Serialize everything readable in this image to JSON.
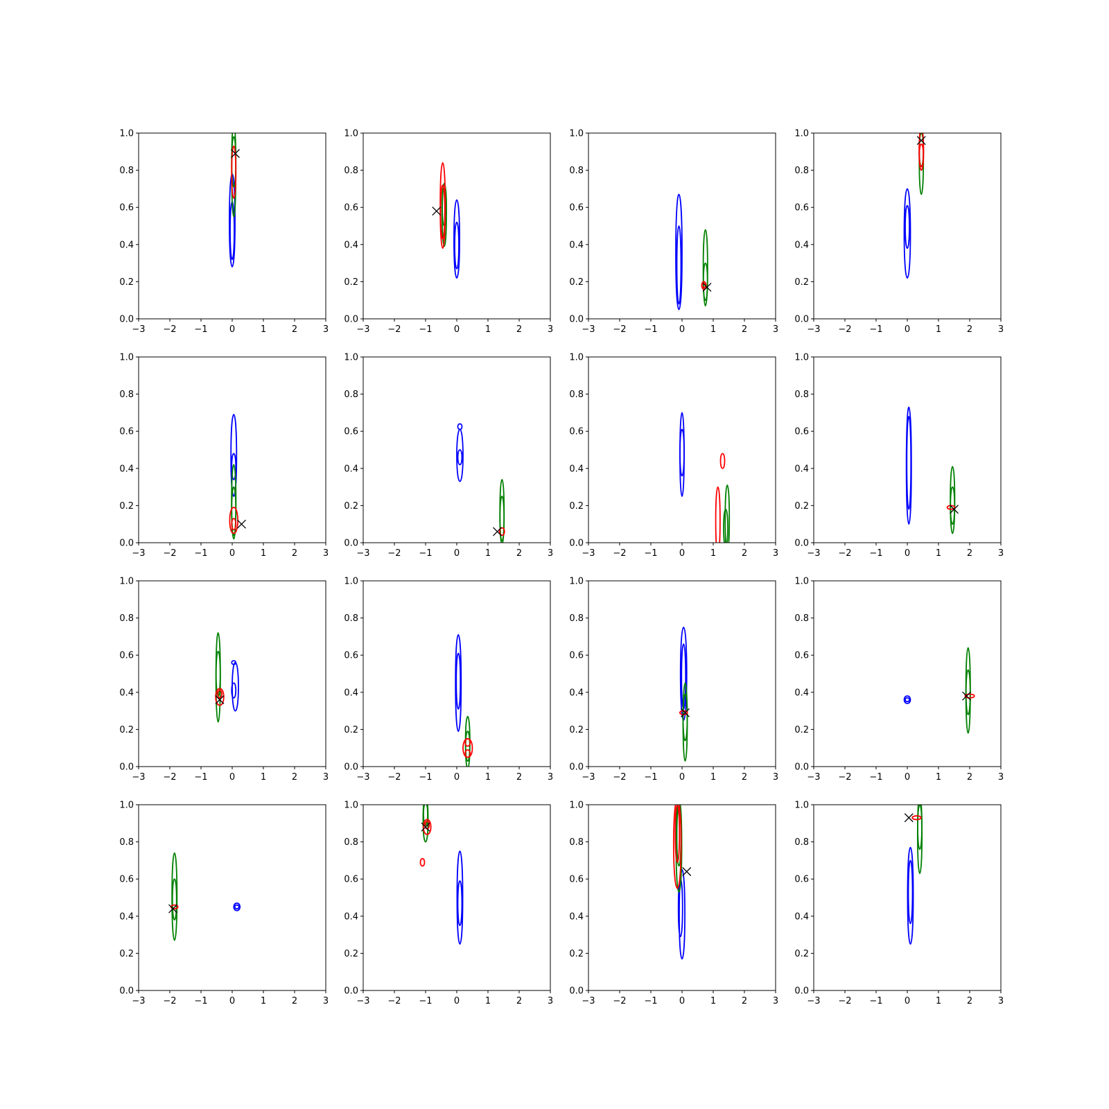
{
  "chart_data": {
    "type": "contour",
    "layout": {
      "rows": 4,
      "cols": 4
    },
    "x_ticks": [
      "−3",
      "−2",
      "−1",
      "0",
      "1",
      "2",
      "3"
    ],
    "y_ticks": [
      "0.0",
      "0.2",
      "0.4",
      "0.6",
      "0.8",
      "1.0"
    ],
    "xlim": [
      -3,
      3
    ],
    "ylim": [
      0,
      1
    ],
    "grid": false,
    "colors": {
      "blue": "#0000ff",
      "green": "#008000",
      "red": "#ff0000",
      "marker": "#000000"
    },
    "panels": [
      {
        "blue": [
          [
            0,
            0.53,
            0.25,
            0.25,
            0.09
          ],
          [
            0,
            0.47,
            0.15,
            0.16,
            0.05
          ]
        ],
        "green": [
          [
            0.05,
            0.79,
            0.24,
            0.27,
            0.05
          ],
          [
            0.05,
            0.83,
            0.12,
            0.15,
            0.03
          ]
        ],
        "red": [
          [
            0.05,
            0.89,
            0.24,
            0.04,
            0.005
          ]
        ],
        "marker": [
          0.1,
          0.89
        ]
      },
      {
        "blue": [
          [
            0,
            0.43,
            0.21,
            0.21,
            0.09
          ],
          [
            0,
            0.39,
            0.12,
            0.13,
            0.05
          ]
        ],
        "green": [
          [
            -0.4,
            0.56,
            0.17,
            0.17,
            0.06
          ],
          [
            -0.4,
            0.6,
            0.1,
            0.12,
            0.03
          ]
        ],
        "red": [
          [
            -0.45,
            0.61,
            0.23,
            0.23,
            0.08
          ],
          [
            -0.45,
            0.56,
            0.13,
            0.16,
            0.03
          ]
        ],
        "marker": [
          -0.65,
          0.58
        ]
      },
      {
        "blue": [
          [
            -0.1,
            0.36,
            0.31,
            0.31,
            0.1
          ],
          [
            -0.1,
            0.3,
            0.22,
            0.2,
            0.06
          ]
        ],
        "green": [
          [
            0.75,
            0.24,
            0.17,
            0.24,
            0.07
          ],
          [
            0.75,
            0.2,
            0.1,
            0.1,
            0.03
          ]
        ],
        "red": [
          [
            0.7,
            0.18,
            0.02,
            0.02,
            0.04
          ],
          [
            0.7,
            0.18,
            0.01,
            0.01,
            0.015
          ]
        ],
        "marker": [
          0.8,
          0.17
        ]
      },
      {
        "blue": [
          [
            0,
            0.45,
            0.23,
            0.25,
            0.1
          ],
          [
            0,
            0.5,
            0.12,
            0.11,
            0.05
          ]
        ],
        "green": [
          [
            0.45,
            0.85,
            0.18,
            0.2,
            0.06
          ],
          [
            0.45,
            0.9,
            0.08,
            0.1,
            0.02
          ]
        ],
        "red": [
          [
            0.45,
            0.9,
            0.1,
            0.12,
            0.07
          ],
          [
            0.45,
            0.88,
            0.06,
            0.06,
            0.03
          ]
        ],
        "marker": [
          0.45,
          0.96
        ]
      },
      {
        "blue": [
          [
            0.05,
            0.47,
            0.22,
            0.22,
            0.09
          ],
          [
            0.05,
            0.42,
            0.08,
            0.06,
            0.04
          ]
        ],
        "green": [
          [
            0.05,
            0.22,
            0.2,
            0.2,
            0.07
          ],
          [
            0.05,
            0.17,
            0.13,
            0.13,
            0.04
          ]
        ],
        "red": [
          [
            0.05,
            0.12,
            0.07,
            0.07,
            0.13
          ],
          [
            0.05,
            0.1,
            0.03,
            0.03,
            0.05
          ]
        ],
        "marker": [
          0.3,
          0.1
        ]
      },
      {
        "blue": [
          [
            0.1,
            0.46,
            0.13,
            0.15,
            0.1
          ],
          [
            0.1,
            0.46,
            0.04,
            0.04,
            0.04
          ],
          [
            0.1,
            0.62,
            0.01,
            0.02,
            0.01
          ]
        ],
        "green": [
          [
            1.45,
            0.16,
            0.17,
            0.18,
            0.06
          ],
          [
            1.45,
            0.13,
            0.12,
            0.12,
            0.03
          ]
        ],
        "red": [
          [
            1.45,
            0.06,
            0.02,
            0.02,
            0.08
          ]
        ],
        "marker": [
          1.3,
          0.06
        ]
      },
      {
        "blue": [
          [
            0,
            0.46,
            0.21,
            0.24,
            0.06
          ],
          [
            0,
            0.47,
            0.11,
            0.14,
            0.02
          ]
        ],
        "green": [
          [
            1.45,
            0.13,
            0.18,
            0.18,
            0.06
          ],
          [
            1.4,
            0.08,
            0.1,
            0.1,
            0.03
          ]
        ],
        "red": [
          [
            1.15,
            0.12,
            0.18,
            0.18,
            0.07
          ],
          [
            1.3,
            0.44,
            0.04,
            0.04,
            0.03
          ]
        ],
        "marker": null
      },
      {
        "blue": [
          [
            0.05,
            0.41,
            0.31,
            0.32,
            0.08
          ],
          [
            0.05,
            0.44,
            0.26,
            0.24,
            0.04
          ]
        ],
        "green": [
          [
            1.45,
            0.23,
            0.18,
            0.18,
            0.07
          ],
          [
            1.45,
            0.2,
            0.1,
            0.1,
            0.03
          ]
        ],
        "red": [
          [
            1.4,
            0.19,
            0.01,
            0.01,
            0.12
          ]
        ],
        "marker": [
          1.5,
          0.18
        ]
      },
      {
        "blue": [
          [
            0.1,
            0.43,
            0.13,
            0.13,
            0.1
          ],
          [
            0.05,
            0.41,
            0.04,
            0.04,
            0.04
          ],
          [
            0.05,
            0.56,
            0.01,
            0.01,
            0.01
          ]
        ],
        "green": [
          [
            -0.45,
            0.48,
            0.24,
            0.24,
            0.07
          ],
          [
            -0.45,
            0.5,
            0.12,
            0.12,
            0.03
          ]
        ],
        "red": [
          [
            -0.4,
            0.37,
            0.04,
            0.05,
            0.13
          ],
          [
            -0.4,
            0.39,
            0.02,
            0.02,
            0.05
          ]
        ],
        "marker": [
          -0.4,
          0.36
        ]
      },
      {
        "blue": [
          [
            0.05,
            0.45,
            0.26,
            0.26,
            0.09
          ],
          [
            0.05,
            0.46,
            0.15,
            0.15,
            0.05
          ]
        ],
        "green": [
          [
            0.35,
            0.13,
            0.14,
            0.14,
            0.07
          ],
          [
            0.35,
            0.11,
            0.08,
            0.08,
            0.03
          ]
        ],
        "red": [
          [
            0.35,
            0.1,
            0.05,
            0.05,
            0.15
          ],
          [
            0.35,
            0.13,
            0.02,
            0.02,
            0.08
          ],
          [
            0.35,
            0.07,
            0.02,
            0.02,
            0.08
          ]
        ],
        "marker": null
      },
      {
        "blue": [
          [
            0.05,
            0.5,
            0.25,
            0.25,
            0.1
          ],
          [
            0.05,
            0.49,
            0.18,
            0.17,
            0.05
          ]
        ],
        "green": [
          [
            0.1,
            0.24,
            0.21,
            0.21,
            0.06
          ],
          [
            0.1,
            0.27,
            0.13,
            0.12,
            0.03
          ]
        ],
        "red": [
          [
            0.05,
            0.29,
            0.01,
            0.01,
            0.12
          ]
        ],
        "marker": [
          0.1,
          0.29
        ]
      },
      {
        "blue": [
          [
            0,
            0.36,
            0.02,
            0.02,
            0.1
          ],
          [
            0,
            0.36,
            0.01,
            0.01,
            0.05
          ]
        ],
        "green": [
          [
            1.95,
            0.41,
            0.23,
            0.23,
            0.07
          ],
          [
            1.95,
            0.4,
            0.12,
            0.12,
            0.03
          ]
        ],
        "red": [
          [
            2.0,
            0.38,
            0.01,
            0.01,
            0.15
          ]
        ],
        "marker": [
          1.9,
          0.38
        ]
      },
      {
        "blue": [
          [
            0.15,
            0.45,
            0.02,
            0.02,
            0.1
          ],
          [
            0.15,
            0.45,
            0.01,
            0.01,
            0.05
          ]
        ],
        "green": [
          [
            -1.85,
            0.51,
            0.24,
            0.23,
            0.08
          ],
          [
            -1.85,
            0.5,
            0.12,
            0.1,
            0.04
          ]
        ],
        "red": [
          [
            -1.85,
            0.45,
            0.01,
            0.01,
            0.11
          ]
        ],
        "marker": [
          -1.9,
          0.44
        ]
      },
      {
        "blue": [
          [
            0.1,
            0.5,
            0.25,
            0.25,
            0.09
          ],
          [
            0.1,
            0.47,
            0.12,
            0.12,
            0.05
          ]
        ],
        "green": [
          [
            -1.0,
            0.92,
            0.12,
            0.12,
            0.08
          ],
          [
            -1.0,
            0.95,
            0.06,
            0.06,
            0.03
          ]
        ],
        "red": [
          [
            -0.95,
            0.88,
            0.04,
            0.04,
            0.12
          ],
          [
            -0.95,
            0.89,
            0.02,
            0.02,
            0.05
          ],
          [
            -1.1,
            0.69,
            0.02,
            0.02,
            0.05
          ]
        ],
        "marker": [
          -1.0,
          0.88
        ]
      },
      {
        "blue": [
          [
            0,
            0.41,
            0.24,
            0.24,
            0.09
          ],
          [
            -0.05,
            0.44,
            0.15,
            0.16,
            0.05
          ]
        ],
        "green": [
          [
            -0.1,
            0.78,
            0.25,
            0.25,
            0.09
          ],
          [
            -0.1,
            0.82,
            0.15,
            0.17,
            0.05
          ]
        ],
        "red": [
          [
            -0.15,
            0.79,
            0.24,
            0.24,
            0.12
          ],
          [
            -0.15,
            0.83,
            0.14,
            0.17,
            0.06
          ]
        ],
        "marker": [
          0.15,
          0.64
        ]
      },
      {
        "blue": [
          [
            0.1,
            0.51,
            0.26,
            0.26,
            0.09
          ],
          [
            0.1,
            0.53,
            0.17,
            0.17,
            0.05
          ]
        ],
        "green": [
          [
            0.4,
            0.84,
            0.21,
            0.21,
            0.07
          ],
          [
            0.4,
            0.88,
            0.12,
            0.12,
            0.04
          ]
        ],
        "red": [
          [
            0.3,
            0.93,
            0.01,
            0.01,
            0.14
          ]
        ],
        "marker": [
          0.05,
          0.93
        ]
      }
    ]
  }
}
